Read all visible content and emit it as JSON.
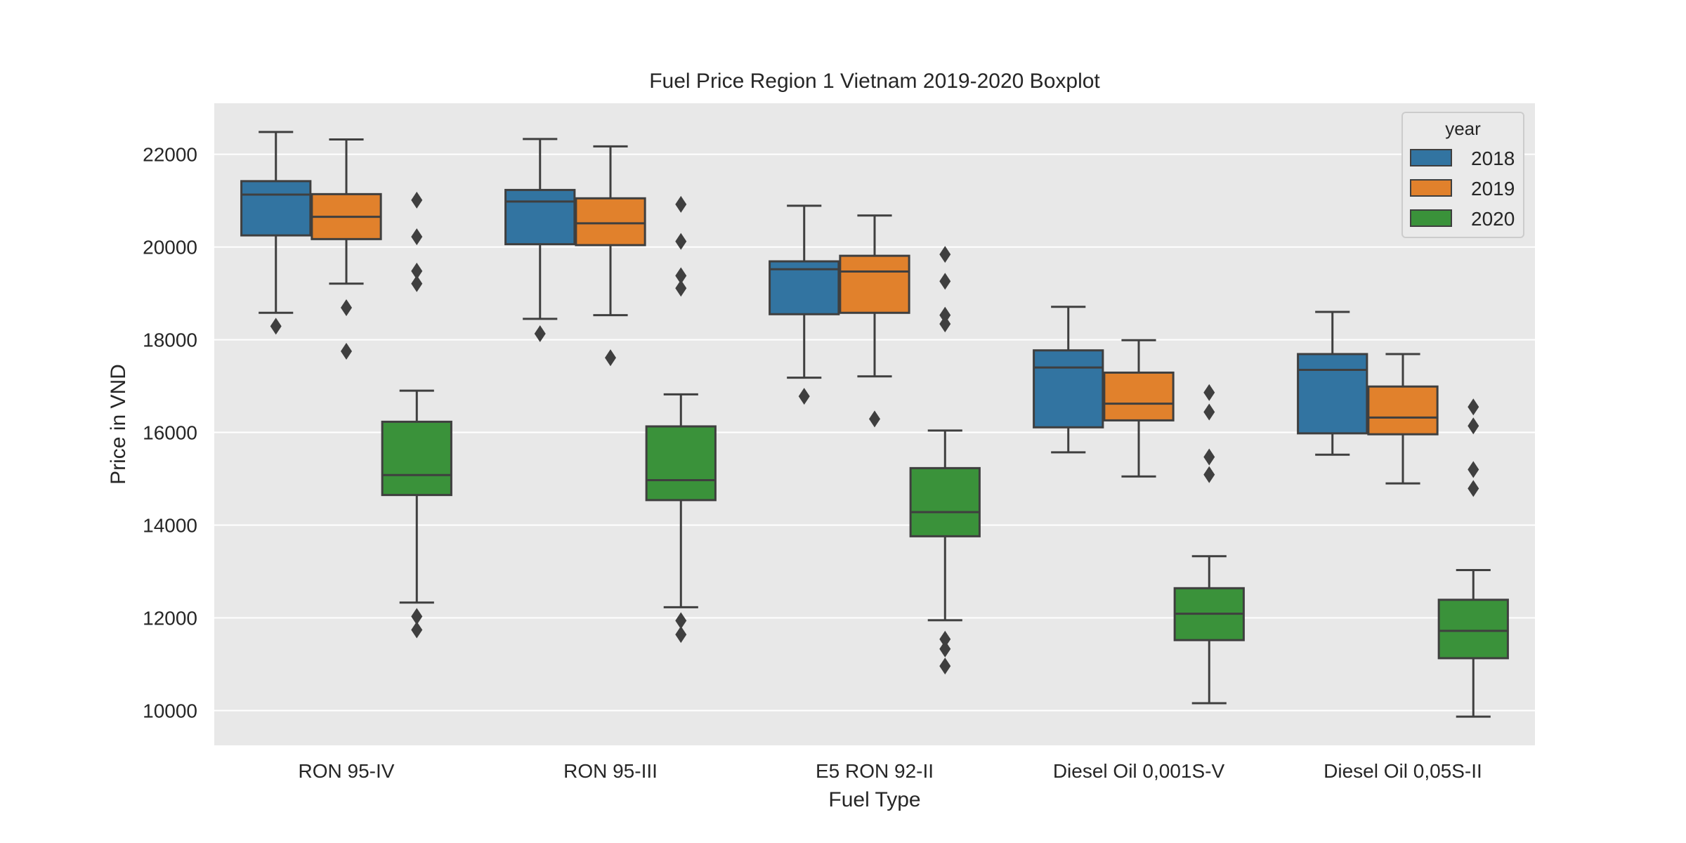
{
  "chart_data": {
    "type": "box",
    "title": "Fuel Price Region 1 Vietnam 2019-2020 Boxplot",
    "xlabel": "Fuel Type",
    "ylabel": "Price in VND",
    "ylim": [
      9250,
      23100
    ],
    "yticks": [
      10000,
      12000,
      14000,
      16000,
      18000,
      20000,
      22000
    ],
    "grid": true,
    "legend": {
      "title": "year",
      "placement": "top-right"
    },
    "categories": [
      "RON 95-IV",
      "RON 95-III",
      "E5 RON 92-II",
      "Diesel Oil 0,001S-V",
      "Diesel Oil 0,05S-II"
    ],
    "series": [
      {
        "name": "2018",
        "color": "#3274a1",
        "boxes": [
          {
            "whisker_low": 18580,
            "q1": 20250,
            "median": 21130,
            "q3": 21420,
            "whisker_high": 22480,
            "outliers": [
              18290
            ]
          },
          {
            "whisker_low": 18450,
            "q1": 20060,
            "median": 20980,
            "q3": 21230,
            "whisker_high": 22330,
            "outliers": [
              18130
            ]
          },
          {
            "whisker_low": 17180,
            "q1": 18550,
            "median": 19520,
            "q3": 19690,
            "whisker_high": 20890,
            "outliers": [
              16780
            ]
          },
          {
            "whisker_low": 15570,
            "q1": 16110,
            "median": 17400,
            "q3": 17770,
            "whisker_high": 18710,
            "outliers": []
          },
          {
            "whisker_low": 15520,
            "q1": 15980,
            "median": 17350,
            "q3": 17690,
            "whisker_high": 18600,
            "outliers": []
          }
        ]
      },
      {
        "name": "2019",
        "color": "#e1812c",
        "boxes": [
          {
            "whisker_low": 19210,
            "q1": 20170,
            "median": 20650,
            "q3": 21140,
            "whisker_high": 22320,
            "outliers": [
              18690,
              17750
            ]
          },
          {
            "whisker_low": 18530,
            "q1": 20040,
            "median": 20510,
            "q3": 21050,
            "whisker_high": 22170,
            "outliers": [
              17610
            ]
          },
          {
            "whisker_low": 17210,
            "q1": 18580,
            "median": 19470,
            "q3": 19810,
            "whisker_high": 20680,
            "outliers": [
              16290
            ]
          },
          {
            "whisker_low": 15050,
            "q1": 16260,
            "median": 16620,
            "q3": 17290,
            "whisker_high": 17990,
            "outliers": []
          },
          {
            "whisker_low": 14900,
            "q1": 15960,
            "median": 16320,
            "q3": 16990,
            "whisker_high": 17690,
            "outliers": []
          }
        ]
      },
      {
        "name": "2020",
        "color": "#3a923a",
        "boxes": [
          {
            "whisker_low": 12330,
            "q1": 14650,
            "median": 15080,
            "q3": 16230,
            "whisker_high": 16900,
            "outliers": [
              21010,
              20220,
              19480,
              19210,
              12030,
              11740
            ]
          },
          {
            "whisker_low": 12230,
            "q1": 14540,
            "median": 14970,
            "q3": 16130,
            "whisker_high": 16820,
            "outliers": [
              20920,
              20120,
              19380,
              19110,
              11940,
              11640
            ]
          },
          {
            "whisker_low": 11950,
            "q1": 13760,
            "median": 14280,
            "q3": 15230,
            "whisker_high": 16040,
            "outliers": [
              19840,
              19260,
              18530,
              18340,
              11540,
              11330,
              10960
            ]
          },
          {
            "whisker_low": 10160,
            "q1": 11520,
            "median": 12090,
            "q3": 12640,
            "whisker_high": 13330,
            "outliers": [
              16860,
              16440,
              15470,
              15090
            ]
          },
          {
            "whisker_low": 9870,
            "q1": 11130,
            "median": 11720,
            "q3": 12390,
            "whisker_high": 13030,
            "outliers": [
              16550,
              16140,
              15200,
              14790
            ]
          }
        ]
      }
    ]
  }
}
